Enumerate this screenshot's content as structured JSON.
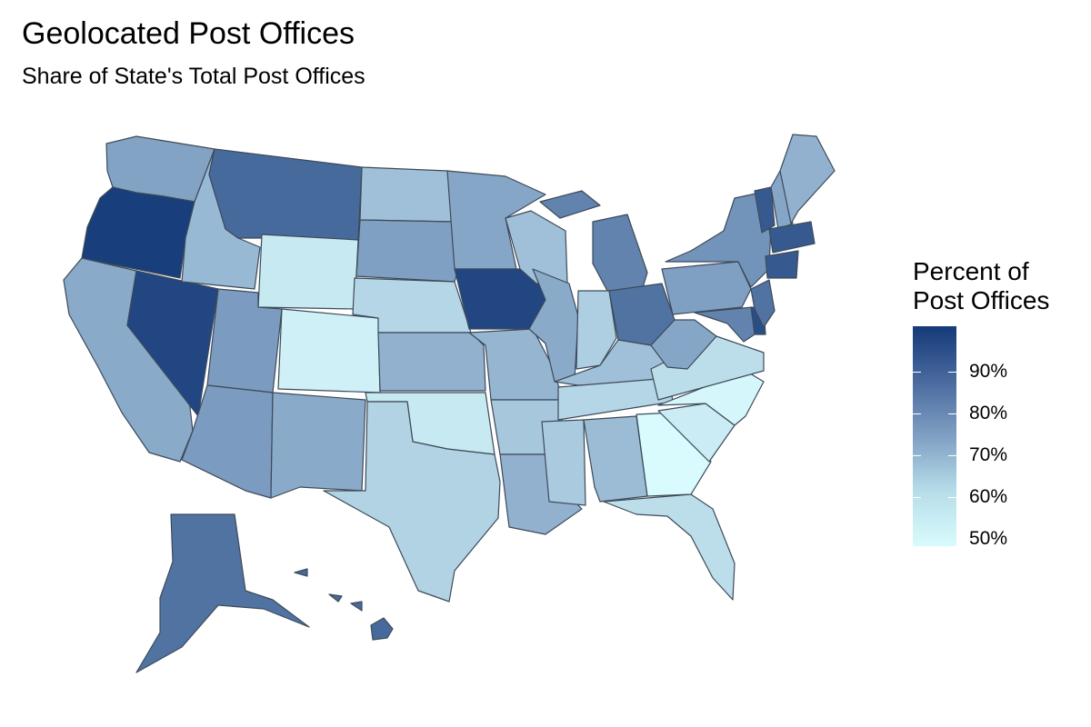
{
  "title": "Geolocated Post Offices",
  "subtitle": "Share of State's Total Post Offices",
  "legend": {
    "title_line1": "Percent of",
    "title_line2": "Post Offices",
    "labels": [
      "90%",
      "80%",
      "70%",
      "60%",
      "50%"
    ]
  },
  "colors": {
    "low": "#d9fbfd",
    "high": "#143a78",
    "border": "#3d4a59"
  },
  "states": [
    {
      "name": "Washington",
      "value": 74
    },
    {
      "name": "Oregon",
      "value": 99
    },
    {
      "name": "California",
      "value": 72
    },
    {
      "name": "Nevada",
      "value": 97
    },
    {
      "name": "Idaho",
      "value": 68
    },
    {
      "name": "Montana",
      "value": 88
    },
    {
      "name": "Wyoming",
      "value": 55
    },
    {
      "name": "Utah",
      "value": 76
    },
    {
      "name": "Arizona",
      "value": 76
    },
    {
      "name": "Colorado",
      "value": 53
    },
    {
      "name": "New Mexico",
      "value": 72
    },
    {
      "name": "North Dakota",
      "value": 66
    },
    {
      "name": "South Dakota",
      "value": 75
    },
    {
      "name": "Nebraska",
      "value": 60
    },
    {
      "name": "Kansas",
      "value": 70
    },
    {
      "name": "Oklahoma",
      "value": 55
    },
    {
      "name": "Texas",
      "value": 61
    },
    {
      "name": "Minnesota",
      "value": 73
    },
    {
      "name": "Iowa",
      "value": 97
    },
    {
      "name": "Missouri",
      "value": 69
    },
    {
      "name": "Arkansas",
      "value": 64
    },
    {
      "name": "Louisiana",
      "value": 70
    },
    {
      "name": "Wisconsin",
      "value": 66
    },
    {
      "name": "Illinois",
      "value": 72
    },
    {
      "name": "Michigan",
      "value": 82
    },
    {
      "name": "Indiana",
      "value": 62
    },
    {
      "name": "Ohio",
      "value": 86
    },
    {
      "name": "Kentucky",
      "value": 66
    },
    {
      "name": "Tennessee",
      "value": 60
    },
    {
      "name": "Mississippi",
      "value": 63
    },
    {
      "name": "Alabama",
      "value": 67
    },
    {
      "name": "Georgia",
      "value": 50
    },
    {
      "name": "Florida",
      "value": 58
    },
    {
      "name": "South Carolina",
      "value": 54
    },
    {
      "name": "North Carolina",
      "value": 51
    },
    {
      "name": "Virginia",
      "value": 58
    },
    {
      "name": "West Virginia",
      "value": 73
    },
    {
      "name": "Pennsylvania",
      "value": 75
    },
    {
      "name": "New York",
      "value": 78
    },
    {
      "name": "Maryland",
      "value": 82
    },
    {
      "name": "Delaware",
      "value": 95
    },
    {
      "name": "New Jersey",
      "value": 86
    },
    {
      "name": "Vermont",
      "value": 92
    },
    {
      "name": "New Hampshire",
      "value": 73
    },
    {
      "name": "Maine",
      "value": 70
    },
    {
      "name": "Massachusetts",
      "value": 92
    },
    {
      "name": "Alaska",
      "value": 86
    },
    {
      "name": "Hawaii",
      "value": 88
    }
  ]
}
